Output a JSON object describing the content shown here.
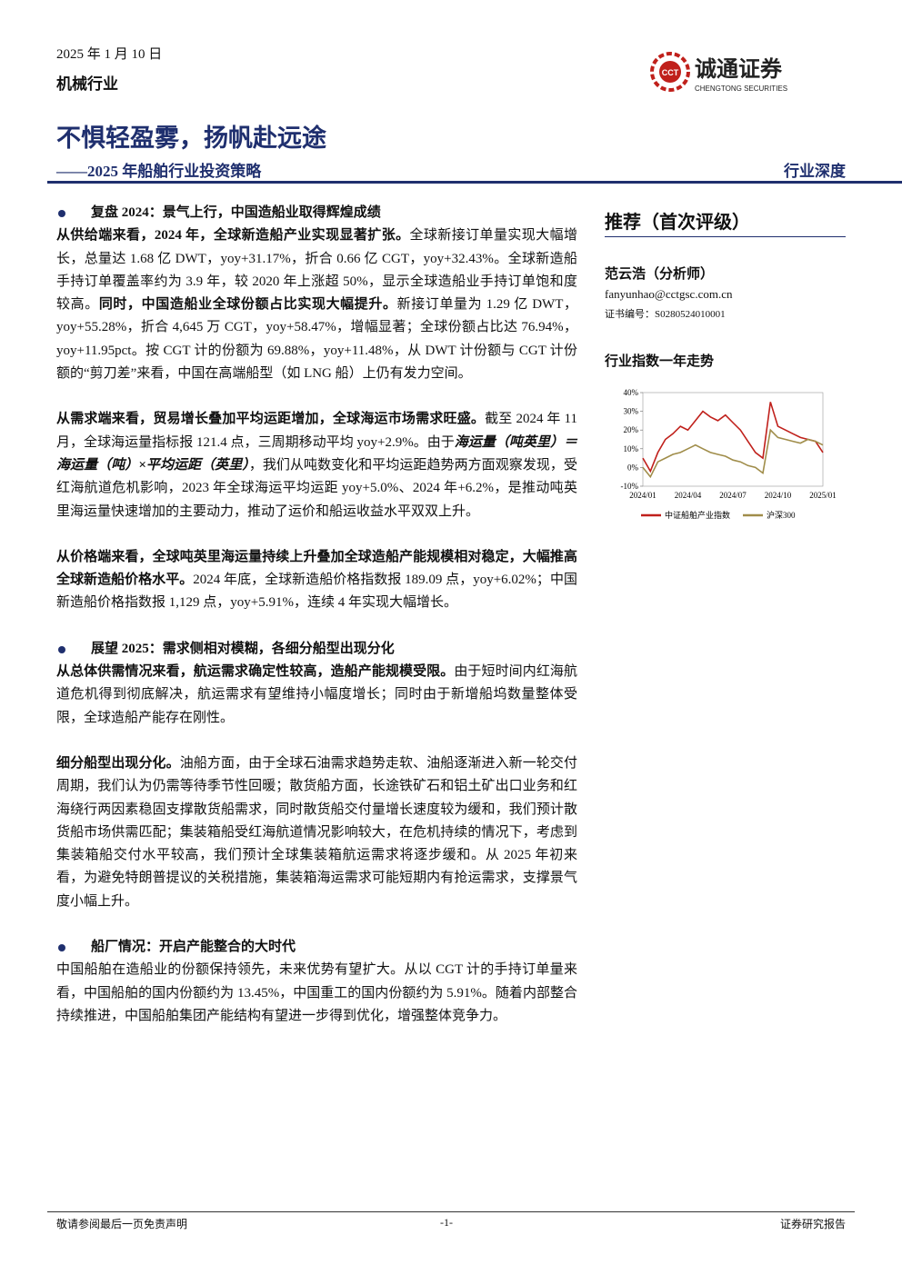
{
  "header": {
    "date": "2025 年 1 月 10 日",
    "industry": "机械行业",
    "logo_mark": "CCT",
    "logo_name": "诚通证券",
    "logo_name_en": "CHENGTONG SECURITIES"
  },
  "title": {
    "main": "不惧轻盈雾，扬帆赴远途",
    "subtitle": "——2025 年船舶行业投资策略",
    "tag": "行业深度"
  },
  "sections": [
    {
      "heading": "复盘 2024：景气上行，中国造船业取得辉煌成绩",
      "paragraphs": [
        [
          {
            "text": "从供给端来看，2024 年，全球新造船产业实现显著扩张。",
            "bold": true
          },
          {
            "text": "全球新接订单量实现大幅增长，总量达 1.68 亿 DWT，yoy+31.17%，折合 0.66 亿 CGT，yoy+32.43%。全球新造船手持订单覆盖率约为 3.9 年，较 2020 年上涨超 50%，显示全球造船业手持订单饱和度较高。"
          },
          {
            "text": "同时，中国造船业全球份额占比实现大幅提升。",
            "bold": true
          },
          {
            "text": "新接订单量为 1.29 亿 DWT，yoy+55.28%，折合 4,645 万 CGT，yoy+58.47%，增幅显著；全球份额占比达 76.94%，yoy+11.95pct。按 CGT 计的份额为 69.88%，yoy+11.48%，从 DWT 计份额与 CGT 计份额的“剪刀差”来看，中国在高端船型（如 LNG 船）上仍有发力空间。"
          }
        ],
        [
          {
            "text": "从需求端来看，贸易增长叠加平均运距增加，全球海运市场需求旺盛。",
            "bold": true
          },
          {
            "text": "截至 2024 年 11 月，全球海运量指标报 121.4 点，三周期移动平均 yoy+2.9%。由于"
          },
          {
            "text": "海运量（吨英里）＝海运量（吨）×平均运距（英里）",
            "bold": true,
            "italic": true
          },
          {
            "text": "，我们从吨数变化和平均运距趋势两方面观察发现，受红海航道危机影响，2023 年全球海运平均运距 yoy+5.0%、2024 年+6.2%，是推动吨英里海运量快速增加的主要动力，推动了运价和船运收益水平双双上升。"
          }
        ],
        [
          {
            "text": "从价格端来看，全球吨英里海运量持续上升叠加全球造船产能规模相对稳定，大幅推高全球新造船价格水平。",
            "bold": true
          },
          {
            "text": "2024 年底，全球新造船价格指数报 189.09 点，yoy+6.02%；中国新造船价格指数报 1,129 点，yoy+5.91%，连续 4 年实现大幅增长。"
          }
        ]
      ]
    },
    {
      "heading": "展望 2025：需求侧相对模糊，各细分船型出现分化",
      "paragraphs": [
        [
          {
            "text": "从总体供需情况来看，航运需求确定性较高，造船产能规模受限。",
            "bold": true
          },
          {
            "text": "由于短时间内红海航道危机得到彻底解决，航运需求有望维持小幅度增长；同时由于新增船坞数量整体受限，全球造船产能存在刚性。"
          }
        ],
        [
          {
            "text": "细分船型出现分化。",
            "bold": true
          },
          {
            "text": "油船方面，由于全球石油需求趋势走软、油船逐渐进入新一轮交付周期，我们认为仍需等待季节性回暖；散货船方面，长途铁矿石和铝土矿出口业务和红海绕行两因素稳固支撑散货船需求，同时散货船交付量增长速度较为缓和，我们预计散货船市场供需匹配；集装箱船受红海航道情况影响较大，在危机持续的情况下，考虑到集装箱船交付水平较高，我们预计全球集装箱航运需求将逐步缓和。从 2025 年初来看，为避免特朗普提议的关税措施，集装箱海运需求可能短期内有抢运需求，支撑景气度小幅上升。"
          }
        ]
      ]
    },
    {
      "heading": "船厂情况：开启产能整合的大时代",
      "paragraphs": [
        [
          {
            "text": "中国船舶在造船业的份额保持领先，未来优势有望扩大。从以 CGT 计的手持订单量来看，中国船舶的国内份额约为 13.45%，中国重工的国内份额约为 5.91%。随着内部整合持续推进，中国船舶集团产能结构有望进一步得到优化，增强整体竞争力。"
          }
        ]
      ]
    }
  ],
  "sidebar": {
    "rating": "推荐（首次评级）",
    "analyst": "范云浩（分析师）",
    "email": "fanyunhao@cctgsc.com.cn",
    "license": "证书编号：S0280524010001",
    "chart_heading": "行业指数一年走势"
  },
  "chart_data": {
    "type": "line",
    "categories": [
      "2024/01",
      null,
      null,
      null,
      null,
      null,
      "2024/04",
      null,
      null,
      null,
      null,
      null,
      "2024/07",
      null,
      null,
      null,
      null,
      null,
      "2024/10",
      null,
      null,
      null,
      null,
      null,
      "2025/01"
    ],
    "series": [
      {
        "name": "中证船舶产业指数",
        "color": "#c0201b",
        "values": [
          5,
          -2,
          8,
          15,
          18,
          22,
          20,
          25,
          30,
          27,
          25,
          28,
          24,
          20,
          14,
          8,
          5,
          35,
          22,
          20,
          18,
          16,
          15,
          14,
          8
        ]
      },
      {
        "name": "沪深300",
        "color": "#a08d4a",
        "values": [
          0,
          -5,
          3,
          5,
          7,
          8,
          10,
          12,
          10,
          8,
          7,
          6,
          4,
          3,
          1,
          0,
          -3,
          20,
          16,
          15,
          14,
          13,
          15,
          14,
          12
        ]
      }
    ],
    "ylim": [
      -10,
      40
    ],
    "yticks": [
      {
        "value": -10,
        "label": "-10%"
      },
      {
        "value": 0,
        "label": "0%"
      },
      {
        "value": 10,
        "label": "10%"
      },
      {
        "value": 20,
        "label": "20%"
      },
      {
        "value": 30,
        "label": "30%"
      },
      {
        "value": 40,
        "label": "40%"
      }
    ],
    "legend": "bottom"
  },
  "footer": {
    "left": "敬请参阅最后一页免责声明",
    "center": "-1-",
    "right": "证券研究报告"
  }
}
